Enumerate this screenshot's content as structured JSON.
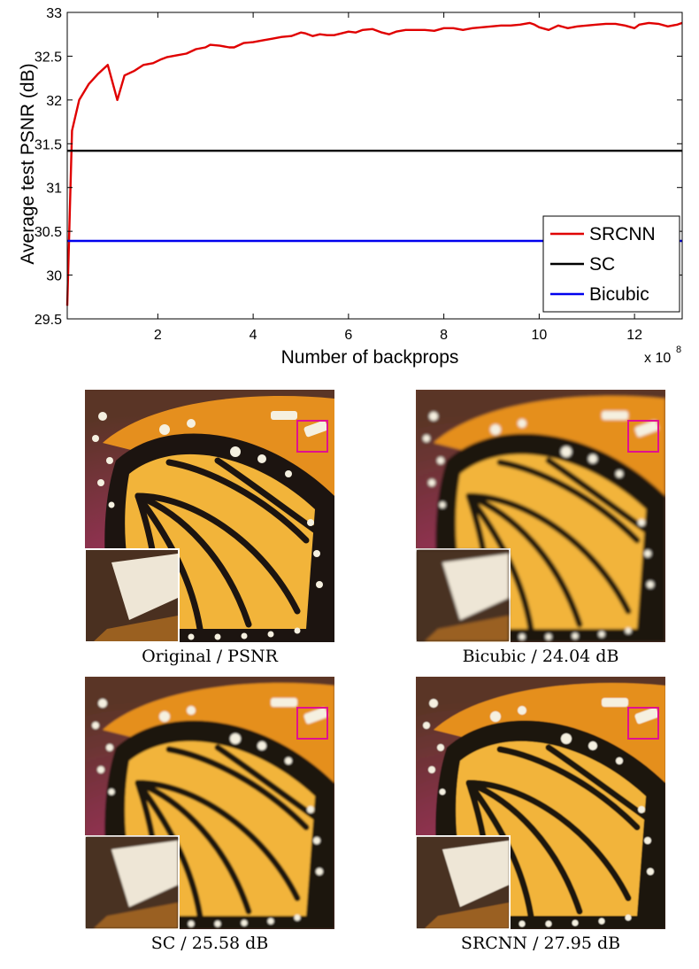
{
  "chart_data": {
    "type": "line",
    "xlabel": "Number of backprops",
    "x_multiplier_label": "x 10",
    "x_multiplier_exponent": "8",
    "ylabel": "Average test PSNR (dB)",
    "xlim": [
      0.1,
      13
    ],
    "ylim": [
      29.5,
      33
    ],
    "xticks": [
      2,
      4,
      6,
      8,
      10,
      12
    ],
    "yticks": [
      29.5,
      30,
      30.5,
      31,
      31.5,
      32,
      32.5,
      33
    ],
    "ytick_labels": [
      "29.5",
      "30",
      "30.5",
      "31",
      "31.5",
      "32",
      "32.5",
      "33"
    ],
    "grid": false,
    "legend_position": "bottom-right",
    "series": [
      {
        "name": "SRCNN",
        "color": "#e00000",
        "x": [
          0.1,
          0.2,
          0.35,
          0.55,
          0.75,
          0.95,
          1.15,
          1.3,
          1.5,
          1.7,
          1.9,
          2.05,
          2.2,
          2.4,
          2.6,
          2.8,
          3.0,
          3.1,
          3.3,
          3.5,
          3.6,
          3.8,
          4.0,
          4.2,
          4.4,
          4.6,
          4.8,
          5.0,
          5.1,
          5.25,
          5.4,
          5.55,
          5.7,
          5.85,
          6.0,
          6.15,
          6.3,
          6.5,
          6.7,
          6.85,
          7.0,
          7.2,
          7.4,
          7.6,
          7.8,
          8.0,
          8.2,
          8.4,
          8.6,
          8.8,
          9.0,
          9.2,
          9.4,
          9.6,
          9.8,
          9.9,
          10.0,
          10.2,
          10.4,
          10.6,
          10.8,
          11.0,
          11.2,
          11.4,
          11.6,
          11.8,
          12.0,
          12.1,
          12.3,
          12.5,
          12.7,
          12.9,
          13.0
        ],
        "y": [
          29.65,
          31.65,
          32.0,
          32.18,
          32.3,
          32.4,
          32.0,
          32.28,
          32.33,
          32.4,
          32.42,
          32.46,
          32.49,
          32.51,
          32.53,
          32.58,
          32.6,
          32.63,
          32.62,
          32.6,
          32.6,
          32.65,
          32.66,
          32.68,
          32.7,
          32.72,
          32.73,
          32.77,
          32.76,
          32.73,
          32.75,
          32.74,
          32.74,
          32.76,
          32.78,
          32.77,
          32.8,
          32.81,
          32.77,
          32.75,
          32.78,
          32.8,
          32.8,
          32.8,
          32.79,
          32.82,
          32.82,
          32.8,
          32.82,
          32.83,
          32.84,
          32.85,
          32.85,
          32.86,
          32.88,
          32.86,
          32.83,
          32.8,
          32.85,
          32.82,
          32.84,
          32.85,
          32.86,
          32.87,
          32.87,
          32.85,
          32.82,
          32.86,
          32.88,
          32.87,
          32.84,
          32.86,
          32.88
        ]
      },
      {
        "name": "SC",
        "color": "#000000",
        "x": [
          0.1,
          13
        ],
        "y": [
          31.42,
          31.42
        ]
      },
      {
        "name": "Bicubic",
        "color": "#0000ee",
        "x": [
          0.1,
          13
        ],
        "y": [
          30.39,
          30.39
        ]
      }
    ]
  },
  "figure": {
    "panels": [
      {
        "caption": "Original / PSNR",
        "highlight_color": "#e0118f"
      },
      {
        "caption": "Bicubic / 24.04 dB",
        "highlight_color": "#e0118f"
      },
      {
        "caption": "SC / 25.58 dB",
        "highlight_color": "#e0118f"
      },
      {
        "caption": "SRCNN / 27.95 dB",
        "highlight_color": "#e0118f"
      }
    ]
  }
}
